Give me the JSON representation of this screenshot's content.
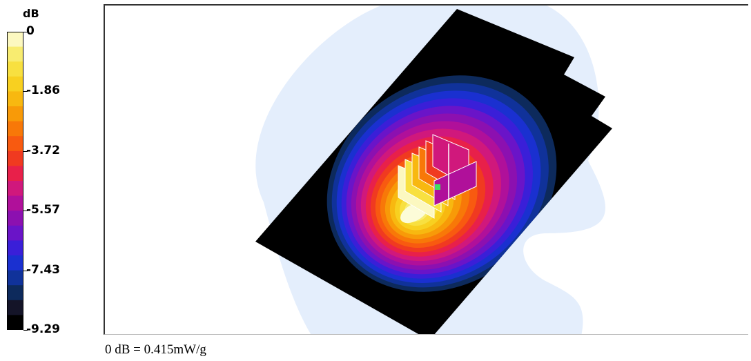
{
  "legend": {
    "unit": "dB",
    "ticks": [
      "0",
      "-1.86",
      "-3.72",
      "-5.57",
      "-7.43",
      "-9.29"
    ],
    "colors": [
      "#000000",
      "#141428",
      "#0d2a5c",
      "#10329a",
      "#1a30d0",
      "#3a1fd8",
      "#6a14c8",
      "#8c10b0",
      "#b0109a",
      "#d0187c",
      "#e8204a",
      "#f03a20",
      "#f85a10",
      "#f87808",
      "#f89a08",
      "#f8b810",
      "#f8d020",
      "#f8e040",
      "#f8ec70",
      "#fcf8c0"
    ]
  },
  "reference": "0 dB = 0.415mW/g",
  "colors": {
    "halo": "#e4eefc",
    "scan_area": "#000000",
    "hotspot": "#fcfcd8",
    "probe_marker": "#40e060"
  }
}
